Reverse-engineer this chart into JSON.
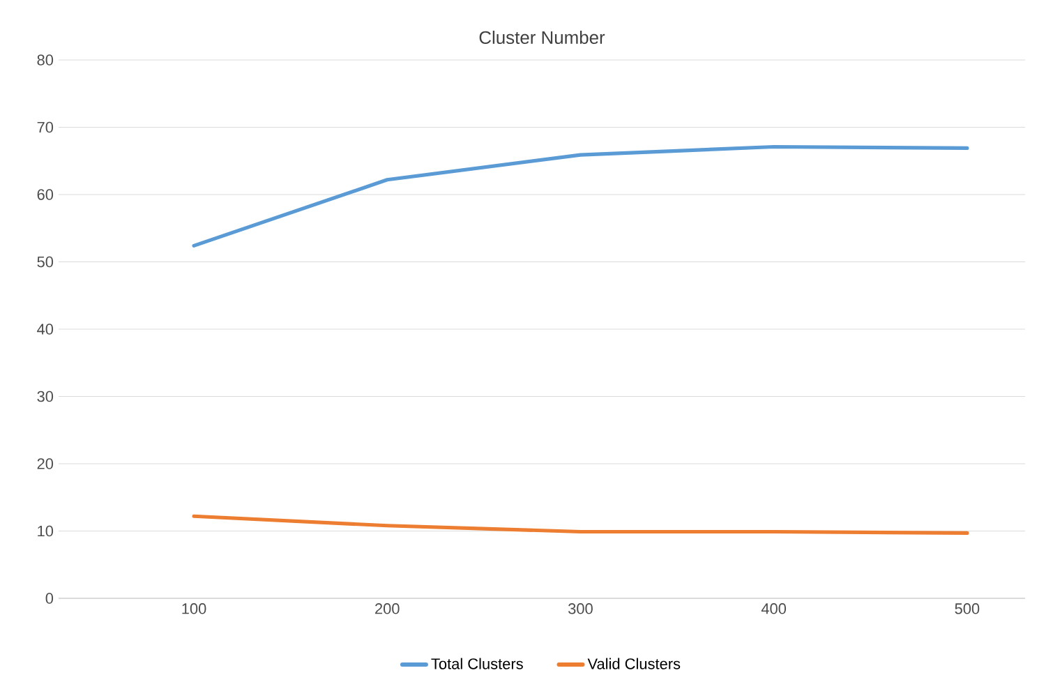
{
  "chart_data": {
    "type": "line",
    "title": "Cluster Number",
    "categories": [
      "100",
      "200",
      "300",
      "400",
      "500"
    ],
    "series": [
      {
        "name": "Total Clusters",
        "color": "#5b9bd5",
        "values": [
          52.4,
          62.2,
          65.9,
          67.1,
          66.9
        ]
      },
      {
        "name": "Valid Clusters",
        "color": "#ed7d31",
        "values": [
          12.2,
          10.8,
          9.9,
          9.9,
          9.7
        ]
      }
    ],
    "ylim": [
      0,
      80
    ],
    "yticks": [
      0,
      10,
      20,
      30,
      40,
      50,
      60,
      70,
      80
    ],
    "grid": "y",
    "legend": "bottom",
    "marker": "none",
    "line_style": "solid"
  }
}
